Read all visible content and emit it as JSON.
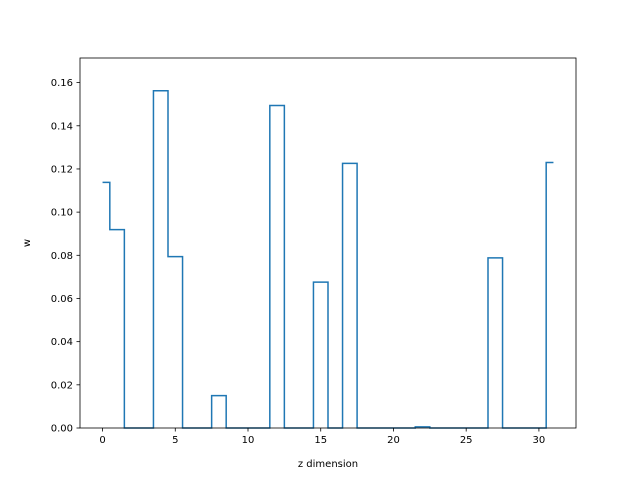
{
  "chart_data": {
    "type": "line",
    "drawstyle": "steps-mid",
    "title": "",
    "xlabel": "z dimension",
    "ylabel": "w",
    "xlim": [
      -1.55,
      32.55
    ],
    "ylim": [
      0,
      0.1714
    ],
    "xticks": [
      0,
      5,
      10,
      15,
      20,
      25,
      30
    ],
    "yticks": [
      0.0,
      0.02,
      0.04,
      0.06,
      0.08,
      0.1,
      0.12,
      0.14,
      0.16
    ],
    "ytick_labels": [
      "0.00",
      "0.02",
      "0.04",
      "0.06",
      "0.08",
      "0.10",
      "0.12",
      "0.14",
      "0.16"
    ],
    "grid": false,
    "legend": "none",
    "line_color": "#1f77b4",
    "x": [
      0,
      1,
      2,
      3,
      4,
      5,
      6,
      7,
      8,
      9,
      10,
      11,
      12,
      13,
      14,
      15,
      16,
      17,
      18,
      19,
      20,
      21,
      22,
      23,
      24,
      25,
      26,
      27,
      28,
      29,
      30,
      31
    ],
    "values": [
      0.1138,
      0.0919,
      0.0,
      0.0,
      0.1562,
      0.0794,
      0.0,
      0.0,
      0.015,
      0.0,
      0.0,
      0.0,
      0.1494,
      0.0,
      0.0,
      0.0676,
      0.0,
      0.1226,
      0.0,
      0.0,
      0.0,
      0.0,
      0.0005,
      0.0,
      0.0,
      0.0,
      0.0,
      0.0788,
      0.0,
      0.0,
      0.0,
      0.123
    ]
  }
}
